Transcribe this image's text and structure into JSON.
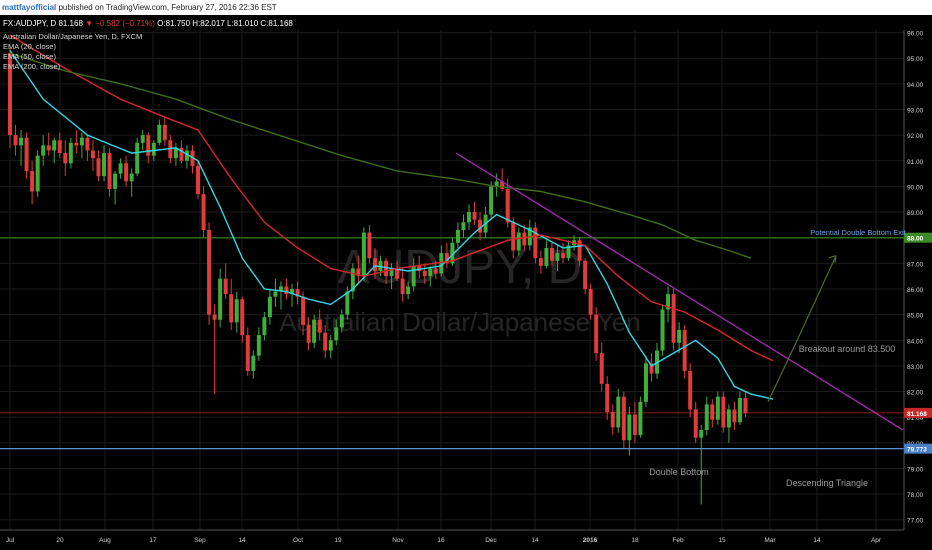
{
  "header": {
    "user": "mattfayofficial",
    "published": "published on TradingView.com, February 27, 2016 22:36 EST"
  },
  "ticker": {
    "symbol": "FX:AUDJPY, D",
    "last": "81.168",
    "arrow": "▼",
    "change": "−0.582 (−0.71%)",
    "open": "O:81.750",
    "high": "H:82.017",
    "low": "L:81.010",
    "close": "C:81.168"
  },
  "legend": {
    "title": "Australian Dollar/Japanese Yen, D, FXCM",
    "ema1": "EMA (20, close)",
    "ema2": "EMA (50, close)",
    "ema3": "EMA (200, close)"
  },
  "watermark": {
    "symbol": "AUDJPY, D",
    "name": "Australian Dollar/Japanese Yen"
  },
  "colors": {
    "up": "#3fae3a",
    "down": "#e03c3c",
    "ema20": "#33d6e6",
    "ema50": "#d6262b",
    "ema200": "#3e6d1c",
    "trendline": "#9b2aa8",
    "arrow": "#4f6b22",
    "resistance": "#2f6b18",
    "support": "#5b8fd6",
    "priceline": "#8a1a1a"
  },
  "chart_data": {
    "type": "candlestick",
    "title": "Australian Dollar/Japanese Yen, D, FXCM",
    "ylim": [
      76.6,
      96.1
    ],
    "y_ticks": [
      "77.00",
      "78.00",
      "79.00",
      "80.00",
      "81.00",
      "82.00",
      "83.00",
      "84.00",
      "85.00",
      "86.00",
      "87.00",
      "88.00",
      "89.00",
      "90.00",
      "91.00",
      "92.00",
      "93.00",
      "94.00",
      "95.00",
      "96.00"
    ],
    "x_tick_labels": [
      "Jul",
      "20",
      "Aug",
      "17",
      "Sep",
      "14",
      "Oct",
      "19",
      "Nov",
      "16",
      "Dec",
      "14",
      "2016",
      "18",
      "Feb",
      "15",
      "Mar",
      "14",
      "Apr"
    ],
    "candles_ohlc": [
      [
        95.2,
        95.4,
        91.5,
        92.0
      ],
      [
        92.0,
        92.4,
        91.2,
        91.6
      ],
      [
        91.6,
        92.2,
        90.8,
        91.9
      ],
      [
        91.9,
        92.1,
        90.3,
        90.6
      ],
      [
        90.6,
        91.0,
        89.3,
        89.8
      ],
      [
        89.8,
        91.4,
        89.6,
        91.2
      ],
      [
        91.2,
        92.0,
        90.8,
        91.6
      ],
      [
        91.6,
        92.1,
        91.2,
        91.4
      ],
      [
        91.4,
        91.9,
        90.9,
        91.8
      ],
      [
        91.8,
        92.1,
        91.1,
        91.3
      ],
      [
        91.3,
        91.8,
        90.4,
        90.9
      ],
      [
        90.9,
        91.9,
        90.7,
        91.7
      ],
      [
        91.7,
        92.2,
        91.3,
        91.6
      ],
      [
        91.6,
        92.1,
        91.1,
        91.9
      ],
      [
        91.9,
        92.0,
        91.0,
        91.4
      ],
      [
        91.4,
        91.8,
        90.6,
        91.1
      ],
      [
        91.1,
        91.4,
        90.2,
        90.4
      ],
      [
        90.4,
        91.6,
        90.2,
        91.3
      ],
      [
        91.3,
        91.5,
        89.6,
        89.9
      ],
      [
        89.9,
        90.6,
        89.3,
        90.5
      ],
      [
        90.5,
        91.1,
        90.3,
        90.9
      ],
      [
        90.9,
        91.2,
        90.0,
        90.2
      ],
      [
        90.2,
        90.7,
        89.6,
        90.5
      ],
      [
        90.5,
        91.9,
        90.4,
        91.7
      ],
      [
        91.7,
        92.2,
        91.4,
        92.0
      ],
      [
        92.0,
        92.1,
        90.9,
        91.2
      ],
      [
        91.2,
        91.8,
        91.0,
        91.7
      ],
      [
        91.7,
        92.6,
        91.6,
        92.4
      ],
      [
        92.4,
        92.7,
        91.6,
        91.8
      ],
      [
        91.8,
        92.0,
        90.9,
        91.1
      ],
      [
        91.1,
        91.7,
        90.8,
        91.5
      ],
      [
        91.5,
        91.8,
        90.9,
        91.0
      ],
      [
        91.0,
        91.6,
        90.7,
        91.4
      ],
      [
        91.4,
        91.6,
        90.5,
        90.8
      ],
      [
        90.8,
        91.0,
        89.5,
        89.7
      ],
      [
        89.7,
        90.0,
        88.0,
        88.3
      ],
      [
        88.3,
        88.6,
        84.6,
        85.0
      ],
      [
        85.0,
        85.4,
        81.9,
        84.8
      ],
      [
        84.8,
        86.8,
        84.5,
        86.4
      ],
      [
        86.4,
        87.0,
        85.6,
        85.8
      ],
      [
        85.8,
        86.4,
        84.4,
        84.7
      ],
      [
        84.7,
        85.9,
        84.3,
        85.6
      ],
      [
        85.6,
        85.7,
        83.9,
        84.2
      ],
      [
        84.2,
        84.5,
        82.6,
        82.8
      ],
      [
        82.8,
        83.6,
        82.5,
        83.4
      ],
      [
        83.4,
        84.5,
        83.2,
        84.2
      ],
      [
        84.2,
        85.1,
        84.0,
        84.9
      ],
      [
        84.9,
        86.0,
        84.6,
        85.7
      ],
      [
        85.7,
        86.4,
        85.3,
        85.9
      ],
      [
        85.9,
        86.3,
        85.2,
        86.1
      ],
      [
        86.1,
        86.4,
        85.6,
        85.8
      ],
      [
        85.8,
        86.2,
        85.3,
        86.0
      ],
      [
        86.0,
        86.3,
        85.4,
        85.7
      ],
      [
        85.7,
        85.9,
        84.2,
        84.6
      ],
      [
        84.6,
        84.9,
        83.6,
        83.9
      ],
      [
        83.9,
        85.0,
        83.7,
        84.8
      ],
      [
        84.8,
        85.2,
        84.0,
        84.3
      ],
      [
        84.3,
        84.6,
        83.3,
        83.6
      ],
      [
        83.6,
        84.2,
        83.3,
        84.0
      ],
      [
        84.0,
        84.8,
        83.8,
        84.5
      ],
      [
        84.5,
        85.2,
        84.3,
        85.0
      ],
      [
        85.0,
        86.1,
        84.8,
        85.9
      ],
      [
        85.9,
        87.0,
        85.6,
        86.8
      ],
      [
        86.8,
        87.3,
        86.2,
        86.5
      ],
      [
        86.5,
        88.4,
        86.3,
        88.2
      ],
      [
        88.2,
        88.5,
        87.0,
        87.2
      ],
      [
        87.2,
        87.6,
        86.4,
        86.7
      ],
      [
        86.7,
        87.3,
        86.5,
        87.1
      ],
      [
        87.1,
        87.2,
        86.2,
        86.5
      ],
      [
        86.5,
        87.0,
        86.0,
        86.8
      ],
      [
        86.8,
        87.1,
        86.3,
        86.4
      ],
      [
        86.4,
        86.8,
        85.5,
        85.8
      ],
      [
        85.8,
        86.3,
        85.6,
        86.1
      ],
      [
        86.1,
        87.2,
        85.9,
        86.9
      ],
      [
        86.9,
        87.3,
        86.4,
        86.7
      ],
      [
        86.7,
        87.0,
        86.2,
        86.5
      ],
      [
        86.5,
        86.9,
        86.1,
        86.8
      ],
      [
        86.8,
        87.1,
        86.4,
        86.6
      ],
      [
        86.6,
        87.7,
        86.5,
        87.4
      ],
      [
        87.4,
        87.8,
        86.8,
        87.0
      ],
      [
        87.0,
        88.0,
        86.9,
        87.8
      ],
      [
        87.8,
        88.6,
        87.6,
        88.3
      ],
      [
        88.3,
        88.9,
        88.0,
        88.6
      ],
      [
        88.6,
        89.3,
        88.3,
        89.0
      ],
      [
        89.0,
        89.4,
        88.5,
        88.7
      ],
      [
        88.7,
        89.0,
        87.9,
        88.2
      ],
      [
        88.2,
        89.2,
        88.0,
        88.9
      ],
      [
        88.9,
        90.2,
        88.7,
        90.0
      ],
      [
        90.0,
        90.5,
        89.6,
        90.2
      ],
      [
        90.2,
        90.7,
        89.8,
        89.9
      ],
      [
        89.9,
        90.3,
        88.4,
        88.6
      ],
      [
        88.6,
        88.8,
        87.2,
        87.5
      ],
      [
        87.5,
        88.4,
        87.3,
        88.2
      ],
      [
        88.2,
        88.5,
        87.5,
        87.7
      ],
      [
        87.7,
        88.7,
        87.5,
        88.4
      ],
      [
        88.4,
        88.6,
        87.0,
        87.2
      ],
      [
        87.2,
        87.5,
        86.6,
        86.9
      ],
      [
        86.9,
        87.9,
        86.8,
        87.6
      ],
      [
        87.6,
        87.8,
        86.9,
        87.1
      ],
      [
        87.1,
        87.7,
        86.7,
        87.4
      ],
      [
        87.4,
        87.8,
        87.0,
        87.2
      ],
      [
        87.2,
        87.9,
        87.1,
        87.7
      ],
      [
        87.7,
        88.1,
        87.5,
        87.9
      ],
      [
        87.9,
        88.0,
        86.9,
        87.1
      ],
      [
        87.1,
        87.2,
        85.8,
        86.0
      ],
      [
        86.0,
        86.2,
        84.8,
        85.0
      ],
      [
        85.0,
        85.3,
        83.2,
        83.5
      ],
      [
        83.5,
        83.9,
        82.0,
        82.3
      ],
      [
        82.3,
        82.6,
        80.9,
        81.2
      ],
      [
        81.2,
        81.5,
        80.3,
        80.6
      ],
      [
        80.6,
        82.1,
        80.4,
        81.8
      ],
      [
        81.8,
        82.0,
        79.8,
        80.1
      ],
      [
        80.1,
        81.4,
        79.5,
        81.1
      ],
      [
        81.1,
        81.6,
        80.0,
        80.3
      ],
      [
        80.3,
        81.8,
        80.2,
        81.6
      ],
      [
        81.6,
        83.4,
        81.4,
        83.1
      ],
      [
        83.1,
        83.5,
        82.4,
        82.7
      ],
      [
        82.7,
        83.9,
        82.5,
        83.6
      ],
      [
        83.6,
        85.4,
        83.4,
        85.2
      ],
      [
        85.2,
        86.1,
        84.7,
        85.8
      ],
      [
        85.8,
        86.0,
        83.6,
        83.9
      ],
      [
        83.9,
        84.7,
        83.5,
        84.4
      ],
      [
        84.4,
        84.6,
        82.5,
        82.8
      ],
      [
        82.8,
        83.1,
        81.0,
        81.3
      ],
      [
        81.3,
        81.6,
        80.0,
        80.2
      ],
      [
        80.2,
        80.7,
        77.6,
        80.5
      ],
      [
        80.5,
        81.8,
        80.3,
        81.5
      ],
      [
        81.5,
        81.7,
        80.6,
        80.9
      ],
      [
        80.9,
        82.0,
        80.7,
        81.8
      ],
      [
        81.8,
        82.0,
        80.4,
        80.6
      ],
      [
        80.6,
        81.5,
        80.0,
        81.3
      ],
      [
        81.3,
        81.6,
        80.5,
        80.8
      ],
      [
        80.8,
        82.0,
        80.7,
        81.75
      ],
      [
        81.75,
        82.017,
        81.01,
        81.168
      ]
    ],
    "series": [
      {
        "name": "EMA (20, close)",
        "values": [
          [
            0,
            95.3
          ],
          [
            6,
            93.4
          ],
          [
            14,
            92.0
          ],
          [
            22,
            91.3
          ],
          [
            30,
            91.5
          ],
          [
            34,
            91.0
          ],
          [
            38,
            89.2
          ],
          [
            42,
            87.2
          ],
          [
            46,
            86.0
          ],
          [
            50,
            85.9
          ],
          [
            54,
            85.6
          ],
          [
            58,
            85.4
          ],
          [
            62,
            86.0
          ],
          [
            66,
            86.9
          ],
          [
            72,
            86.7
          ],
          [
            78,
            86.9
          ],
          [
            84,
            88.2
          ],
          [
            88,
            88.9
          ],
          [
            94,
            88.3
          ],
          [
            100,
            87.6
          ],
          [
            104,
            87.7
          ],
          [
            108,
            86.2
          ],
          [
            112,
            84.3
          ],
          [
            116,
            83.0
          ],
          [
            120,
            83.5
          ],
          [
            124,
            84.0
          ],
          [
            128,
            83.3
          ],
          [
            131,
            82.2
          ],
          [
            134,
            81.9
          ],
          [
            138,
            81.7
          ]
        ]
      },
      {
        "name": "EMA (50, close)",
        "values": [
          [
            0,
            95.9
          ],
          [
            10,
            94.6
          ],
          [
            20,
            93.4
          ],
          [
            28,
            92.7
          ],
          [
            34,
            92.2
          ],
          [
            40,
            90.3
          ],
          [
            46,
            88.6
          ],
          [
            52,
            87.6
          ],
          [
            58,
            86.8
          ],
          [
            64,
            86.5
          ],
          [
            70,
            86.8
          ],
          [
            80,
            87.1
          ],
          [
            90,
            87.9
          ],
          [
            96,
            88.1
          ],
          [
            104,
            87.7
          ],
          [
            110,
            86.5
          ],
          [
            116,
            85.5
          ],
          [
            122,
            85.1
          ],
          [
            128,
            84.4
          ],
          [
            134,
            83.6
          ],
          [
            138,
            83.2
          ]
        ]
      },
      {
        "name": "EMA (200, close)",
        "values": [
          [
            0,
            95.2
          ],
          [
            10,
            94.5
          ],
          [
            20,
            94.0
          ],
          [
            30,
            93.4
          ],
          [
            40,
            92.6
          ],
          [
            50,
            91.9
          ],
          [
            60,
            91.2
          ],
          [
            70,
            90.6
          ],
          [
            80,
            90.3
          ],
          [
            88,
            90.0
          ],
          [
            96,
            89.8
          ],
          [
            104,
            89.4
          ],
          [
            112,
            88.9
          ],
          [
            118,
            88.5
          ],
          [
            124,
            87.9
          ],
          [
            130,
            87.5
          ],
          [
            134,
            87.2
          ]
        ]
      }
    ],
    "annotations": {
      "resistance_label": "Potential Double Bottom Exit",
      "resistance_price": "88.00",
      "support_price": "79.773",
      "last_price": "81.168",
      "breakout": "Breakout around 83.500",
      "double_bottom": "Double Bottom",
      "triangle": "Descending Triangle"
    },
    "grid": true
  }
}
